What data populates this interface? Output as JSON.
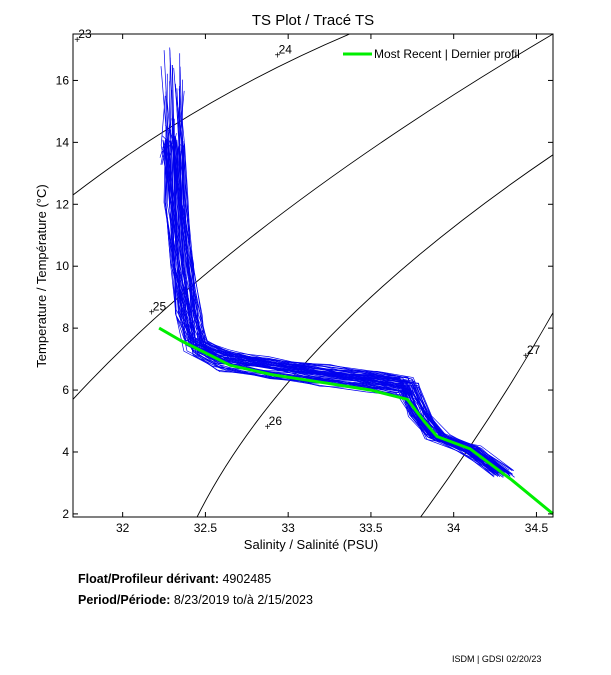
{
  "chart_data": {
    "type": "scatter",
    "title": "TS Plot / Tracé TS",
    "xlabel": "Salinity / Salinité (PSU)",
    "ylabel": "Temperature / Température (°C)",
    "xlim": [
      31.7,
      34.6
    ],
    "ylim": [
      1.9,
      17.5
    ],
    "xticks": [
      32,
      32.5,
      33,
      33.5,
      34,
      34.5
    ],
    "yticks": [
      2,
      4,
      6,
      8,
      10,
      12,
      14,
      16
    ],
    "grid": false,
    "legend": {
      "position": "top-right",
      "entries": [
        "Most Recent | Dernier profil"
      ]
    },
    "density_isolines": [
      {
        "label": "23",
        "label_at": [
          31.72,
          17.3
        ]
      },
      {
        "label": "24",
        "label_at": [
          32.93,
          16.8
        ]
      },
      {
        "label": "25",
        "label_at": [
          32.17,
          8.5
        ]
      },
      {
        "label": "26",
        "label_at": [
          32.87,
          4.8
        ]
      },
      {
        "label": "27",
        "label_at": [
          34.43,
          7.1
        ]
      }
    ],
    "series": [
      {
        "name": "Most Recent | Dernier profil",
        "color": "#00ee00",
        "x": [
          32.22,
          32.35,
          32.5,
          32.65,
          32.9,
          33.2,
          33.5,
          33.72,
          33.82,
          33.9,
          34.1,
          34.35,
          34.6
        ],
        "y": [
          8.0,
          7.6,
          7.2,
          6.8,
          6.5,
          6.25,
          6.0,
          5.7,
          5.0,
          4.5,
          4.1,
          3.1,
          2.0
        ]
      },
      {
        "name": "",
        "color": "#0000ee",
        "x": [
          32.3,
          32.31,
          32.33,
          32.36,
          32.4,
          32.45,
          32.6,
          32.9,
          33.2,
          33.5,
          33.72,
          33.8,
          33.9,
          34.1,
          34.3
        ],
        "y": [
          16.5,
          14.0,
          12.0,
          10.0,
          8.5,
          7.4,
          7.0,
          6.7,
          6.5,
          6.3,
          6.1,
          5.2,
          4.5,
          4.1,
          3.3
        ]
      }
    ]
  },
  "info": {
    "float_label": "Float/Profileur dérivant:",
    "float_id": "4902485",
    "period_label": "Period/Période:",
    "period_start": "8/23/2019",
    "period_sep": "to/à",
    "period_end": "2/15/2023"
  },
  "footer": "ISDM | GDSI 02/20/23",
  "colors": {
    "profiles": "#0000ee",
    "recent": "#00ee00",
    "isolines": "#000000"
  }
}
